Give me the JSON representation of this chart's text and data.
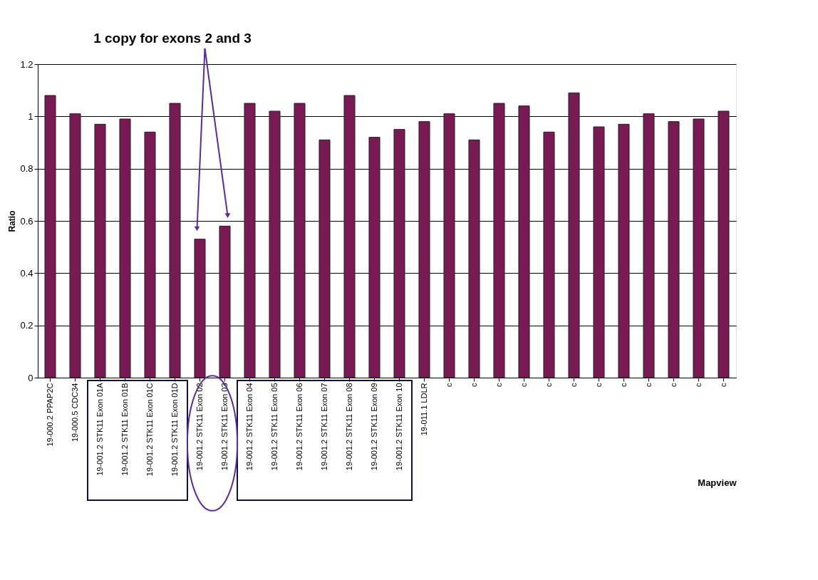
{
  "chart_data": {
    "type": "bar",
    "xlabel": "Mapview",
    "ylabel": "Ratio",
    "annotations": [
      "1 copy for exons 2 and 3"
    ],
    "categories": [
      "19-000.2 PPAP2C",
      "19-000.5 CDC34",
      "19-001.2 STK11 Exon 01A",
      "19-001.2 STK11 Exon 01B",
      "19-001.2 STK11 Exon 01C",
      "19-001.2 STK11 Exon 01D",
      "19-001.2 STK11 Exon 02",
      "19-001.2 STK11 Exon 03",
      "19-001.2 STK11 Exon 04",
      "19-001.2 STK11 Exon 05",
      "19-001.2 STK11 Exon 06",
      "19-001.2 STK11 Exon 07",
      "19-001.2 STK11 Exon 08",
      "19-001.2 STK11 Exon 09",
      "19-001.2 STK11 Exon 10",
      "19-011.1 LDLR",
      "c",
      "c",
      "c",
      "c",
      "c",
      "c",
      "c",
      "c",
      "c",
      "c",
      "c",
      "c"
    ],
    "values": [
      1.08,
      1.01,
      0.97,
      0.99,
      0.94,
      1.05,
      0.53,
      0.58,
      1.05,
      1.02,
      1.05,
      0.91,
      1.08,
      0.92,
      0.95,
      0.98,
      1.01,
      0.91,
      1.05,
      1.04,
      0.94,
      1.09,
      0.96,
      0.97,
      1.01,
      0.98,
      0.99,
      1.02
    ],
    "color": "#7a1a55",
    "ylim": [
      0,
      1.2
    ],
    "yticks": [
      0,
      0.2,
      0.4,
      0.6,
      0.8,
      1,
      1.2
    ],
    "grid": "y"
  }
}
